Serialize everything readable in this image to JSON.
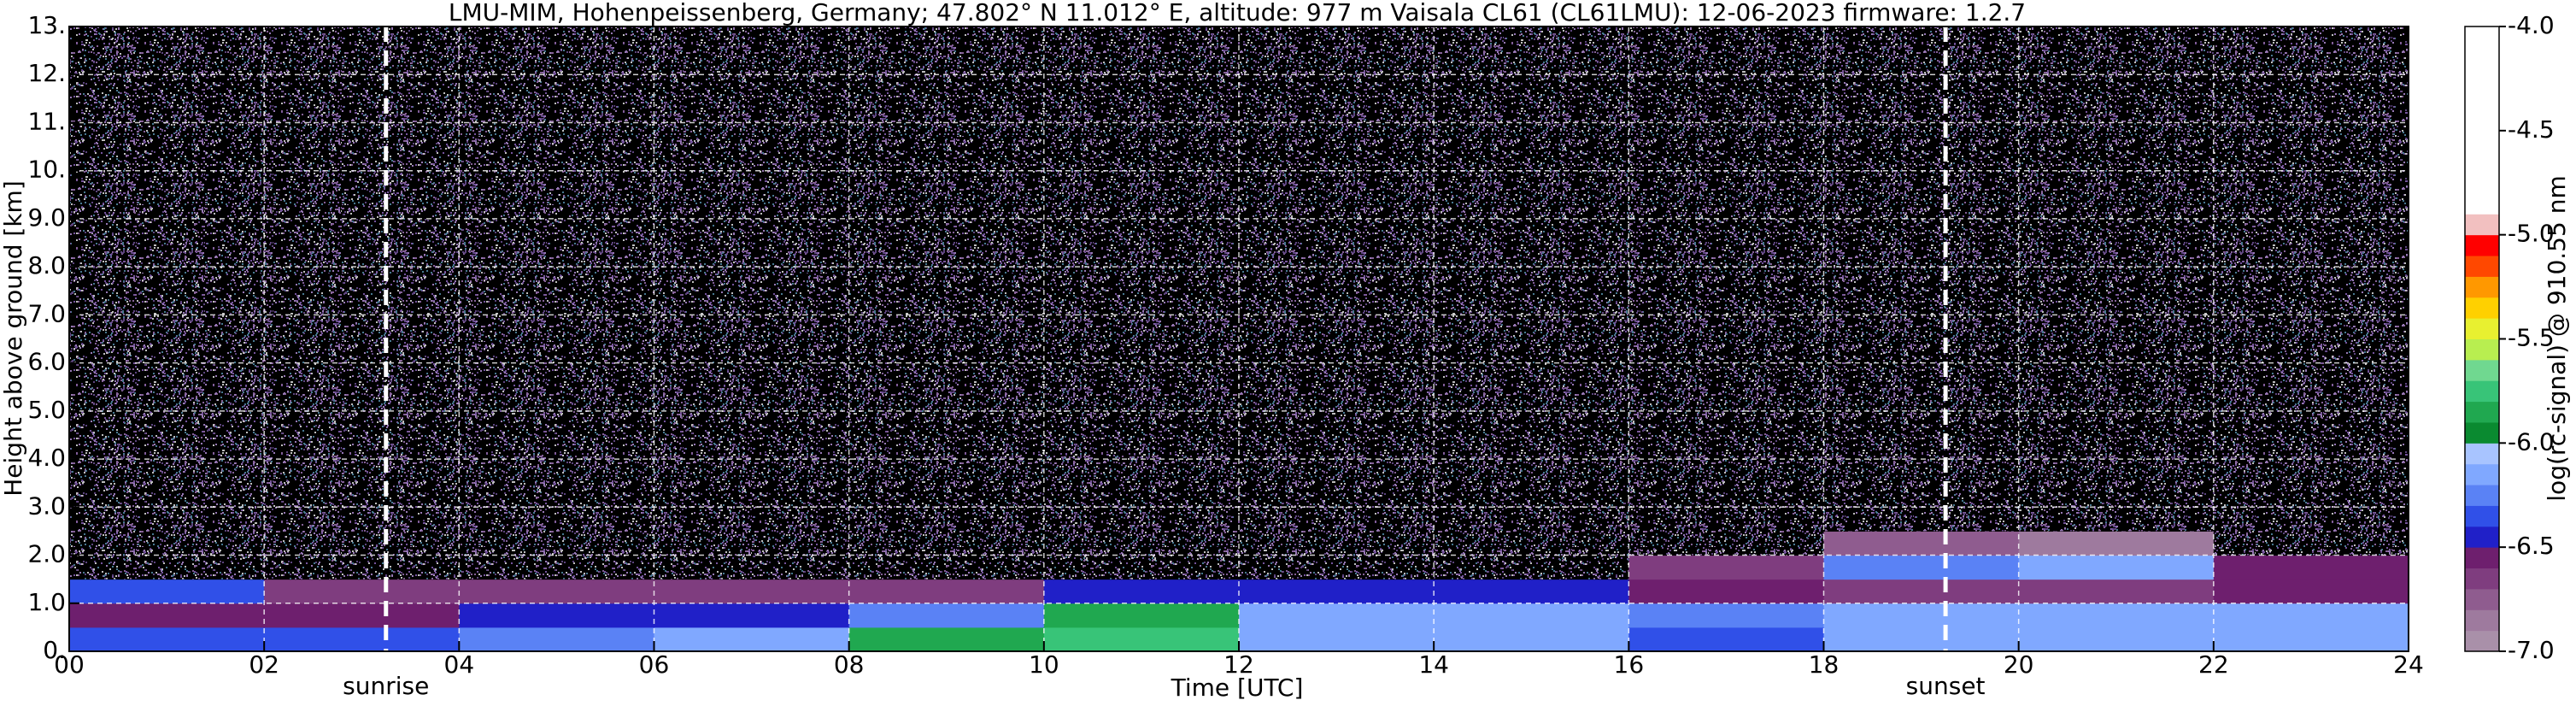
{
  "chart_data": {
    "type": "heatmap",
    "title": "LMU-MIM, Hohenpeissenberg, Germany; 47.802° N 11.012° E, altitude: 977 m    Vaisala CL61 (CL61LMU): 12-06-2023    firmware: 1.2.7",
    "x_label": "Time [UTC]",
    "y_label": "Height above ground [km]",
    "xlim": [
      0,
      24
    ],
    "ylim": [
      0,
      13
    ],
    "xticks": [
      {
        "value": 0,
        "label": "00"
      },
      {
        "value": 2,
        "label": "02"
      },
      {
        "value": 4,
        "label": "04"
      },
      {
        "value": 6,
        "label": "06"
      },
      {
        "value": 8,
        "label": "08"
      },
      {
        "value": 10,
        "label": "10"
      },
      {
        "value": 12,
        "label": "12"
      },
      {
        "value": 14,
        "label": "14"
      },
      {
        "value": 16,
        "label": "16"
      },
      {
        "value": 18,
        "label": "18"
      },
      {
        "value": 20,
        "label": "20"
      },
      {
        "value": 22,
        "label": "22"
      },
      {
        "value": 24,
        "label": "24"
      }
    ],
    "yticks": [
      {
        "value": 0,
        "label": "0."
      },
      {
        "value": 1,
        "label": "1.0"
      },
      {
        "value": 2,
        "label": "2.0"
      },
      {
        "value": 3,
        "label": "3.0"
      },
      {
        "value": 4,
        "label": "4.0"
      },
      {
        "value": 5,
        "label": "5.0"
      },
      {
        "value": 6,
        "label": "6.0"
      },
      {
        "value": 7,
        "label": "7.0"
      },
      {
        "value": 8,
        "label": "8.0"
      },
      {
        "value": 9,
        "label": "9.0"
      },
      {
        "value": 10,
        "label": "10."
      },
      {
        "value": 11,
        "label": "11."
      },
      {
        "value": 12,
        "label": "12."
      },
      {
        "value": 13,
        "label": "13."
      }
    ],
    "grid": true,
    "xbins": [
      0,
      2,
      4,
      6,
      8,
      10,
      12,
      14,
      16,
      18,
      20,
      22,
      24
    ],
    "ybins": [
      0,
      0.5,
      1,
      1.5,
      2,
      2.5,
      4,
      13
    ],
    "z": [
      [
        -6.4,
        -6.4,
        -6.3,
        -6.2,
        -5.9,
        -5.8,
        -6.2,
        -6.2,
        -6.4,
        -6.2,
        -6.2,
        -6.2
      ],
      [
        -6.6,
        -6.6,
        -6.45,
        -6.45,
        -6.3,
        -5.9,
        -6.2,
        -6.2,
        -6.3,
        -6.2,
        -6.2,
        -6.2
      ],
      [
        -6.4,
        -6.7,
        -6.7,
        -6.7,
        -6.7,
        -6.5,
        -6.5,
        -6.5,
        -6.6,
        -6.7,
        -6.65,
        -6.6
      ],
      [
        -7.2,
        -7.2,
        -7.2,
        -7.2,
        -7.2,
        -7.1,
        -7.1,
        -7.1,
        -6.7,
        -6.3,
        -6.2,
        -6.6
      ],
      [
        -7.1,
        -7.1,
        -7.1,
        -7.1,
        -7.1,
        -7.1,
        -7.1,
        -7.1,
        -7.1,
        -6.8,
        -6.9,
        -7.1
      ],
      [
        -7.15,
        -7.15,
        -7.15,
        -7.15,
        -7.15,
        -7.15,
        -7.15,
        -7.15,
        -7.15,
        -7.15,
        -7.15,
        -7.15
      ],
      [
        -7.2,
        -7.2,
        -7.2,
        -7.2,
        -7.2,
        -7.2,
        -7.2,
        -7.2,
        -7.2,
        -7.2,
        -7.2,
        -7.2
      ]
    ],
    "annotations": [
      {
        "x": 3.25,
        "label": "sunrise"
      },
      {
        "x": 19.25,
        "label": "sunset"
      }
    ],
    "colorbar": {
      "label": "log(rc-signal) @ 910.55 nm",
      "zlim": [
        -7,
        -4
      ],
      "ticks": [
        {
          "value": -4,
          "label": "-4.0"
        },
        {
          "value": -4.5,
          "label": "-4.5"
        },
        {
          "value": -5,
          "label": "-5.0"
        },
        {
          "value": -5.5,
          "label": "-5.5"
        },
        {
          "value": -6,
          "label": "-6.0"
        },
        {
          "value": -6.5,
          "label": "-6.5"
        },
        {
          "value": -7,
          "label": "-7.0"
        }
      ],
      "levels": [
        -7,
        -6.9,
        -6.8,
        -6.7,
        -6.6,
        -6.5,
        -6.4,
        -6.3,
        -6.2,
        -6.1,
        -6,
        -5.9,
        -5.8,
        -5.7,
        -5.6,
        -5.5,
        -5.4,
        -5.3,
        -5.2,
        -5.1,
        -5,
        -4.9,
        -4
      ],
      "colors": [
        "#a990a9",
        "#9e7a9e",
        "#8f5c8f",
        "#7f3d7f",
        "#6e1f6e",
        "#2020c8",
        "#3050e8",
        "#5a82f5",
        "#80a8ff",
        "#a8c4ff",
        "#0a8a30",
        "#20a850",
        "#38c478",
        "#70d890",
        "#b8ee50",
        "#e8f030",
        "#ffd000",
        "#ff9800",
        "#ff4800",
        "#ff0000",
        "#f2c0c0",
        "#ffffff"
      ],
      "under_color": "#000000"
    }
  }
}
